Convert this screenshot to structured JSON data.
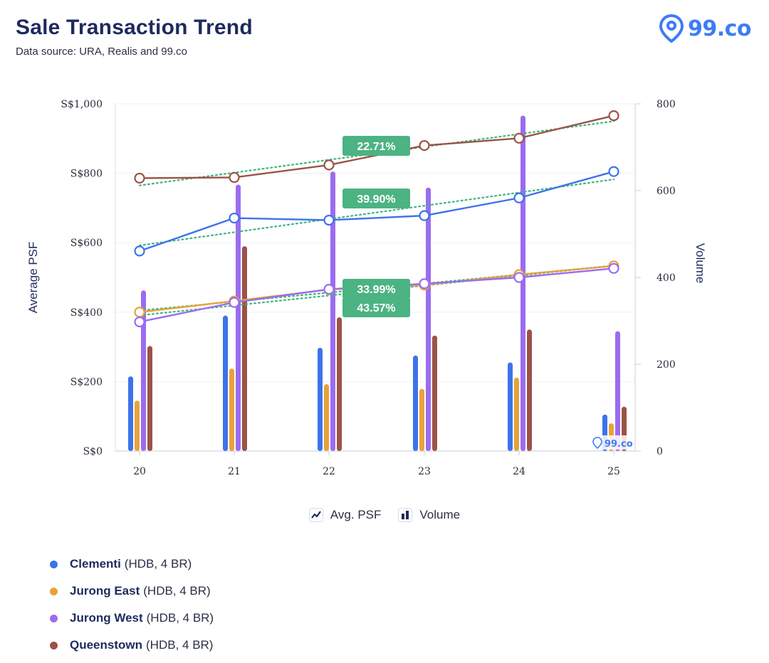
{
  "header": {
    "title": "Sale Transaction Trend",
    "subtitle": "Data source: URA, Realis and 99.co",
    "brand": "99.co"
  },
  "colors": {
    "clementi": "#3d73ea",
    "jurong_east": "#e8a23a",
    "jurong_west": "#9b6cf0",
    "queenstown": "#9a5347",
    "trend": "#3fb47f",
    "badge": "#4cb383"
  },
  "chart_data": {
    "type": "line+bar",
    "categories": [
      "20",
      "21",
      "22",
      "23",
      "24",
      "25"
    ],
    "ylabel_left": "Average PSF",
    "ylabel_right": "Volume",
    "left_ticks": [
      "S$0",
      "S$200",
      "S$400",
      "S$600",
      "S$800",
      "S$1,000"
    ],
    "right_ticks": [
      "0",
      "200",
      "400",
      "600",
      "800"
    ],
    "ylim_left": [
      0,
      1000
    ],
    "ylim_right": [
      0,
      800
    ],
    "series": [
      {
        "name": "Clementi",
        "color_key": "clementi",
        "psf": [
          576,
          671,
          665,
          678,
          729,
          805
        ],
        "volume": [
          172,
          312,
          238,
          220,
          204,
          84
        ]
      },
      {
        "name": "Jurong East",
        "color_key": "jurong_east",
        "psf": [
          400,
          432,
          465,
          478,
          508,
          533
        ],
        "volume": [
          116,
          190,
          154,
          143,
          169,
          64
        ]
      },
      {
        "name": "Jurong West",
        "color_key": "jurong_west",
        "psf": [
          372,
          428,
          466,
          482,
          500,
          526
        ],
        "volume": [
          370,
          614,
          644,
          607,
          773,
          276
        ]
      },
      {
        "name": "Queenstown",
        "color_key": "queenstown",
        "psf": [
          786,
          788,
          824,
          880,
          901,
          966
        ],
        "volume": [
          242,
          472,
          308,
          266,
          280,
          102
        ]
      }
    ],
    "trend_labels": [
      {
        "text": "22.71%",
        "series": "Queenstown"
      },
      {
        "text": "39.90%",
        "series": "Clementi"
      },
      {
        "text": "33.99%",
        "series": "Jurong East"
      },
      {
        "text": "43.57%",
        "series": "Jurong West"
      }
    ],
    "grid": true
  },
  "toggles": {
    "avg_psf": "Avg. PSF",
    "volume": "Volume"
  },
  "legend": [
    {
      "name": "Clementi",
      "detail": "(HDB, 4 BR)",
      "color_key": "clementi"
    },
    {
      "name": "Jurong East",
      "detail": "(HDB, 4 BR)",
      "color_key": "jurong_east"
    },
    {
      "name": "Jurong West",
      "detail": "(HDB, 4 BR)",
      "color_key": "jurong_west"
    },
    {
      "name": "Queenstown",
      "detail": "(HDB, 4 BR)",
      "color_key": "queenstown"
    }
  ]
}
